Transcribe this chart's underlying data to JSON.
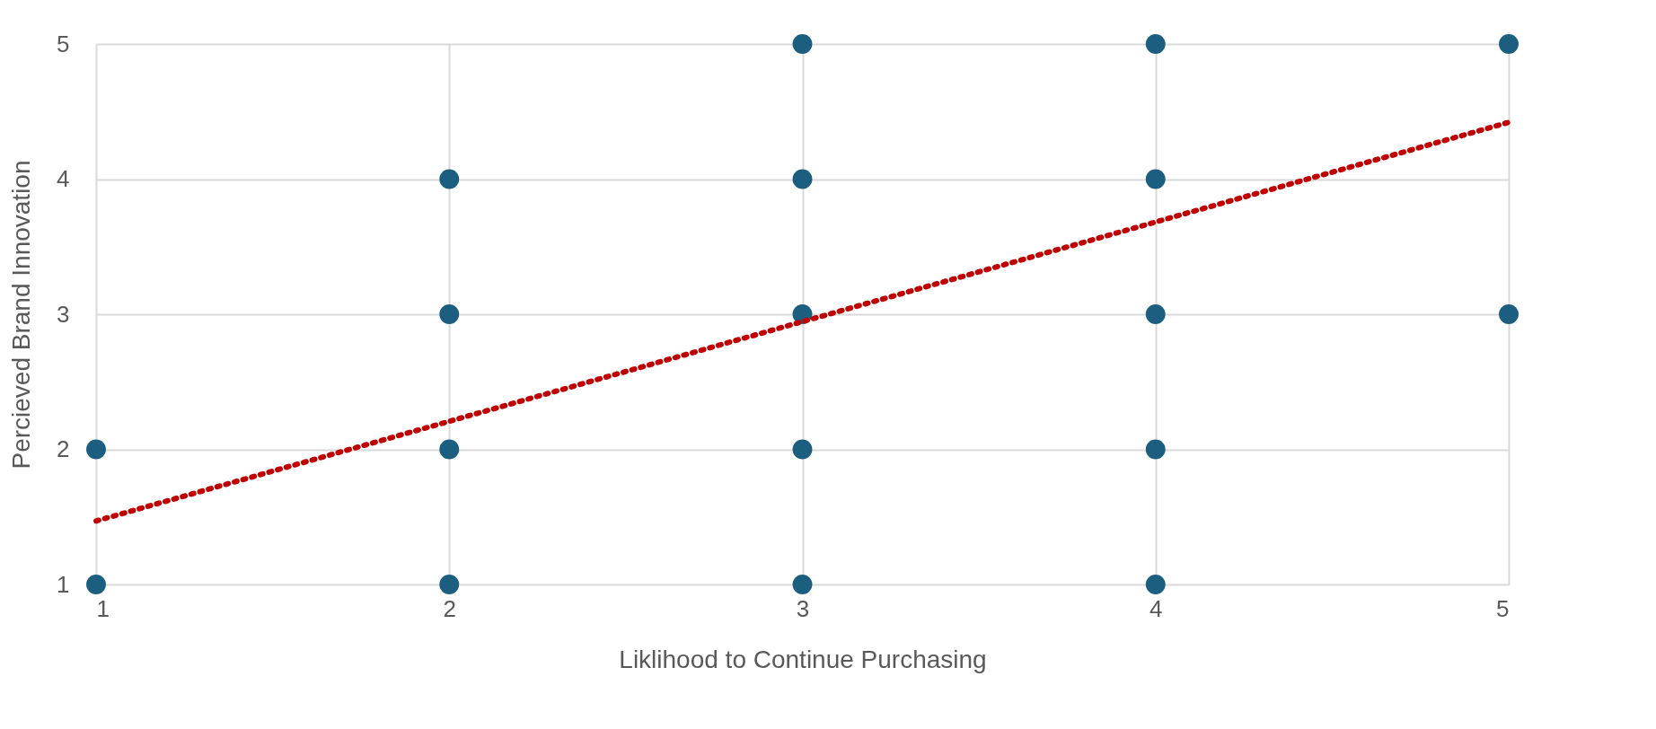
{
  "chart_data": {
    "type": "scatter",
    "xlabel": "Liklihood to Continue Purchasing",
    "ylabel": "Percieved Brand Innovation",
    "xlim": [
      1,
      5
    ],
    "ylim": [
      1,
      5
    ],
    "xticks": [
      1,
      2,
      3,
      4,
      5
    ],
    "yticks": [
      1,
      2,
      3,
      4,
      5
    ],
    "grid": true,
    "series": [
      {
        "marker": "circle",
        "color": "#1b5e80",
        "x": [
          1,
          1,
          2,
          2,
          2,
          2,
          3,
          3,
          3,
          3,
          3,
          4,
          4,
          4,
          4,
          4,
          5,
          5
        ],
        "values": [
          1,
          2,
          1,
          2,
          3,
          4,
          1,
          2,
          3,
          4,
          5,
          1,
          2,
          3,
          4,
          5,
          3,
          5
        ]
      },
      {
        "type": "line",
        "marker": "none",
        "color": "#c00000",
        "line_style": "dotted",
        "x": [
          1,
          5
        ],
        "values": [
          1.47,
          4.42
        ]
      }
    ]
  }
}
